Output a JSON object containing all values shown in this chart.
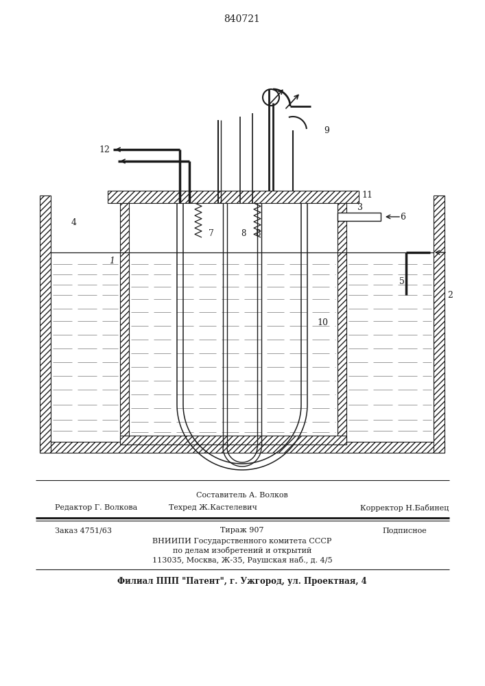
{
  "patent_number": "840721",
  "bg_color": "#ffffff",
  "line_color": "#1a1a1a",
  "gray_line": "#999999",
  "footer": {
    "line1_center": "Составитель А. Волков",
    "line2_left": "Редактор Г. Волкова",
    "line2_center": "Техред Ж.Кастелевич",
    "line2_right": "Корректор Н.Бабинец",
    "line3_left": "Заказ 4751/63",
    "line3_center": "Тираж 907",
    "line3_right": "Подписное",
    "line4": "ВНИИПИ Государственного комитета СССР",
    "line5": "по делам изобретений и открытий",
    "line6": "113035, Москва, Ж-35, Раушская наб., д. 4/5",
    "line7": "Филиал ППП \"Патент\", г. Ужгород, ул. Проектная, 4"
  }
}
